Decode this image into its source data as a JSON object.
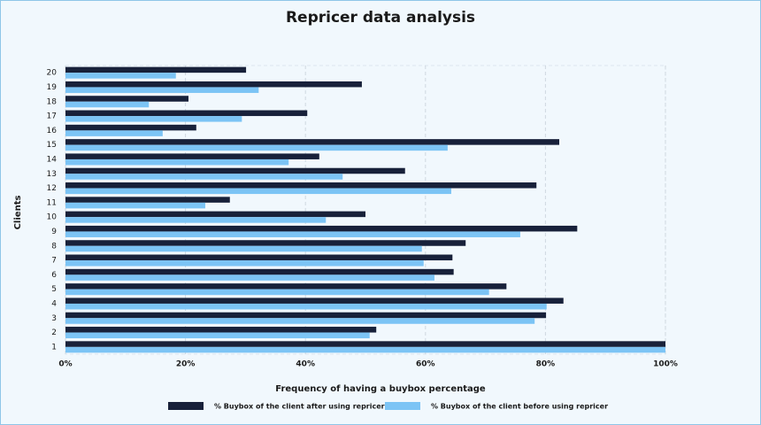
{
  "chart_data": {
    "type": "barh",
    "title": "Repricer data analysis",
    "x_label": "Frequency of having a buybox percentage",
    "y_label": "Clients",
    "categories": [
      "1",
      "2",
      "3",
      "4",
      "5",
      "6",
      "7",
      "8",
      "9",
      "10",
      "11",
      "12",
      "13",
      "14",
      "15",
      "16",
      "17",
      "18",
      "19",
      "20"
    ],
    "series": [
      {
        "name": "% Buybox of the client after using repricer",
        "color": "#18213a",
        "values": [
          100,
          51.8,
          80.1,
          83,
          73.5,
          64.7,
          64.5,
          66.7,
          85.3,
          50,
          27.4,
          78.5,
          56.6,
          42.3,
          82.3,
          21.8,
          40.3,
          20.5,
          49.4,
          30.1
        ]
      },
      {
        "name": "% Buybox of the client before using repricer",
        "color": "#7cc4f5",
        "values": [
          100,
          50.7,
          78.2,
          80.2,
          70.6,
          61.5,
          59.7,
          59.4,
          75.8,
          43.4,
          23.3,
          64.3,
          46.2,
          37.2,
          63.7,
          16.2,
          29.4,
          13.9,
          32.2,
          18.4
        ]
      }
    ],
    "xlim": [
      0,
      100
    ],
    "xticks": [
      {
        "value": 0,
        "label": "0%"
      },
      {
        "value": 20,
        "label": "20%"
      },
      {
        "value": 40,
        "label": "40%"
      },
      {
        "value": 60,
        "label": "60%"
      },
      {
        "value": 80,
        "label": "80%"
      },
      {
        "value": 100,
        "label": "100%"
      }
    ],
    "grid": true,
    "legend": "bottom"
  }
}
